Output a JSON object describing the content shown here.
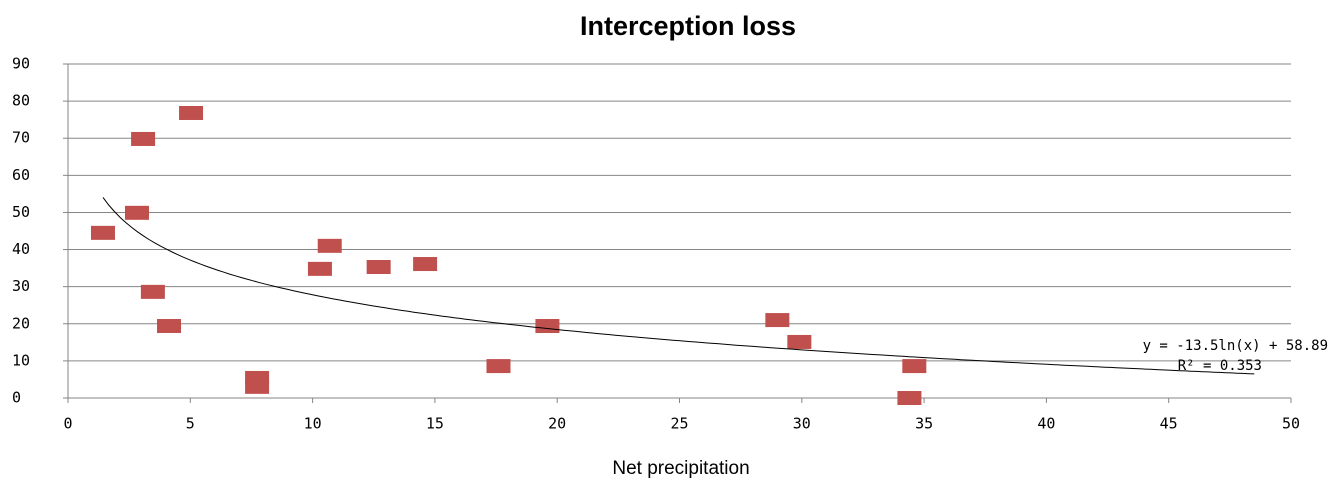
{
  "chart_data": {
    "type": "scatter",
    "title": "Interception loss",
    "x_label": "Net precipitation",
    "series": [
      {
        "name": "Interception loss",
        "color": "#c0504d",
        "x": [
          1.43,
          3.07,
          2.82,
          3.47,
          4.13,
          5.03,
          7.73,
          7.73,
          10.3,
          10.7,
          12.7,
          14.6,
          17.6,
          19.6,
          29.0,
          29.9,
          34.6,
          34.4
        ],
        "values": [
          44.5,
          69.8,
          49.9,
          28.6,
          19.4,
          76.8,
          5.4,
          3.0,
          34.8,
          41.0,
          35.3,
          36.1,
          8.6,
          19.4,
          21.0,
          15.1,
          8.6,
          0
        ]
      }
    ],
    "trendline": {
      "slope": -13.5,
      "intercept": 58.89,
      "r2": 0.353,
      "label": "y = -13.5ln(x) + 58.89",
      "r2_label": "R² = 0.353"
    },
    "xlim": [
      0,
      50
    ],
    "xticks": [
      0,
      5,
      10,
      15,
      20,
      25,
      30,
      35,
      40,
      45,
      50
    ],
    "ylim": [
      0,
      90
    ],
    "yticks": [
      0,
      10,
      20,
      30,
      40,
      50,
      60,
      70,
      80,
      90
    ],
    "grid": true
  }
}
